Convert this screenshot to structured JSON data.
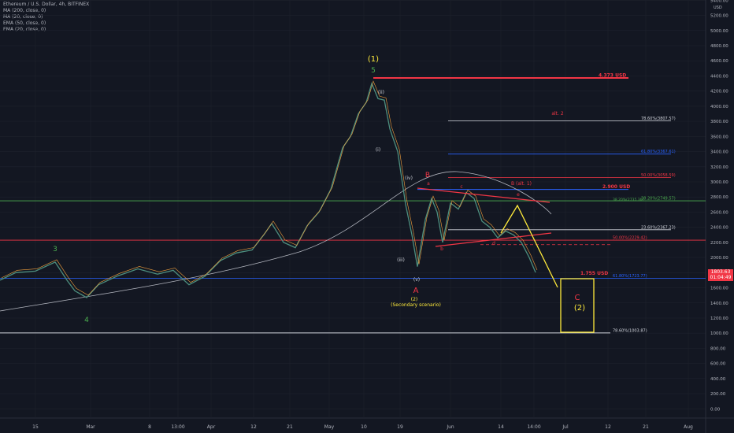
{
  "header": {
    "title": "Ethereum / U.S. Dollar, 4h, BITFINEX",
    "indicators": [
      "MA (200, close, 0)",
      "MA (20, close, 0)",
      "EMA (50, close, 0)",
      "EMA (20, close, 0)"
    ]
  },
  "price_axis": {
    "unit": "USD",
    "ticks": [
      "5400.00",
      "5200.00",
      "5000.00",
      "4800.00",
      "4600.00",
      "4400.00",
      "4200.00",
      "4000.00",
      "3800.00",
      "3600.00",
      "3400.00",
      "3200.00",
      "3000.00",
      "2800.00",
      "2600.00",
      "2400.00",
      "2200.00",
      "2000.00",
      "1800.00",
      "1600.00",
      "1400.00",
      "1200.00",
      "1000.00",
      "800.00",
      "600.00",
      "400.00",
      "200.00",
      "0.00"
    ],
    "current_price": "1803.63",
    "countdown": "01:04:49"
  },
  "time_axis": {
    "ticks": [
      "15",
      "Mar",
      "8",
      "13:00",
      "Apr",
      "12",
      "21",
      "May",
      "10",
      "19",
      "Jun",
      "14",
      "14:00",
      "Jul",
      "12",
      "21",
      "Aug"
    ]
  },
  "colors": {
    "background": "#131722",
    "grid": "#1e222d",
    "red": "#f23645",
    "yellow": "#ffeb3b",
    "green": "#4caf50",
    "blue": "#2962ff",
    "white": "#d1d4dc"
  },
  "chart_data": {
    "type": "line",
    "title": "Ethereum / U.S. Dollar, 4h, BITFINEX",
    "xlabel": "",
    "ylabel": "USD",
    "ylim": [
      -100,
      5500
    ],
    "series": [
      {
        "name": "ETHUSD",
        "values": [
          [
            0,
            1700
          ],
          [
            20,
            1800
          ],
          [
            45,
            1820
          ],
          [
            70,
            1940
          ],
          [
            85,
            1700
          ],
          [
            95,
            1560
          ],
          [
            110,
            1470
          ],
          [
            125,
            1640
          ],
          [
            150,
            1760
          ],
          [
            175,
            1850
          ],
          [
            200,
            1780
          ],
          [
            220,
            1830
          ],
          [
            240,
            1640
          ],
          [
            260,
            1750
          ],
          [
            280,
            1960
          ],
          [
            300,
            2060
          ],
          [
            320,
            2100
          ],
          [
            335,
            2300
          ],
          [
            345,
            2450
          ],
          [
            360,
            2200
          ],
          [
            375,
            2130
          ],
          [
            390,
            2420
          ],
          [
            405,
            2600
          ],
          [
            420,
            2900
          ],
          [
            435,
            3450
          ],
          [
            445,
            3600
          ],
          [
            455,
            3900
          ],
          [
            465,
            4050
          ],
          [
            472,
            4300
          ],
          [
            480,
            4100
          ],
          [
            488,
            4080
          ],
          [
            495,
            3700
          ],
          [
            505,
            3400
          ],
          [
            515,
            2700
          ],
          [
            523,
            2300
          ],
          [
            530,
            1880
          ],
          [
            540,
            2500
          ],
          [
            548,
            2780
          ],
          [
            555,
            2600
          ],
          [
            562,
            2200
          ],
          [
            572,
            2720
          ],
          [
            582,
            2640
          ],
          [
            592,
            2860
          ],
          [
            602,
            2780
          ],
          [
            612,
            2480
          ],
          [
            622,
            2400
          ],
          [
            632,
            2260
          ],
          [
            642,
            2350
          ],
          [
            652,
            2300
          ],
          [
            662,
            2200
          ],
          [
            672,
            2000
          ],
          [
            680,
            1803
          ]
        ]
      }
    ],
    "levels": [
      {
        "label": "4.373 USD",
        "value": 4373
      },
      {
        "label": "78.60%(3807.57)",
        "value": 3807.57
      },
      {
        "label": "61.80%(3367.61)",
        "value": 3367.61
      },
      {
        "label": "50.00%(3058.59)",
        "value": 3058.59
      },
      {
        "label": "2.900 USD",
        "value": 2900
      },
      {
        "label": "38.20%(2749.57)",
        "value": 2749.57
      },
      {
        "label": "38.20%(2735.36)",
        "value": 2735.36
      },
      {
        "label": "23.60%(2367.23)",
        "value": 2367.23
      },
      {
        "label": "50.00%(2229.42)",
        "value": 2229.42
      },
      {
        "label": "1.755 USD",
        "value": 1755
      },
      {
        "label": "61.80%(1723.77)",
        "value": 1723.77
      },
      {
        "label": "78.60%(1003.87)",
        "value": 1003.87
      }
    ],
    "annotations": [
      "(1)",
      "5",
      "(ii)",
      "(i)",
      "(iv)",
      "(iii)",
      "(v)",
      "A",
      "(2)",
      "(Secondary scenario)",
      "B",
      "a",
      "b",
      "c",
      "d",
      "e",
      "B (alt. 1)",
      "alt. 2",
      "3",
      "4",
      "C",
      "(2)"
    ]
  }
}
